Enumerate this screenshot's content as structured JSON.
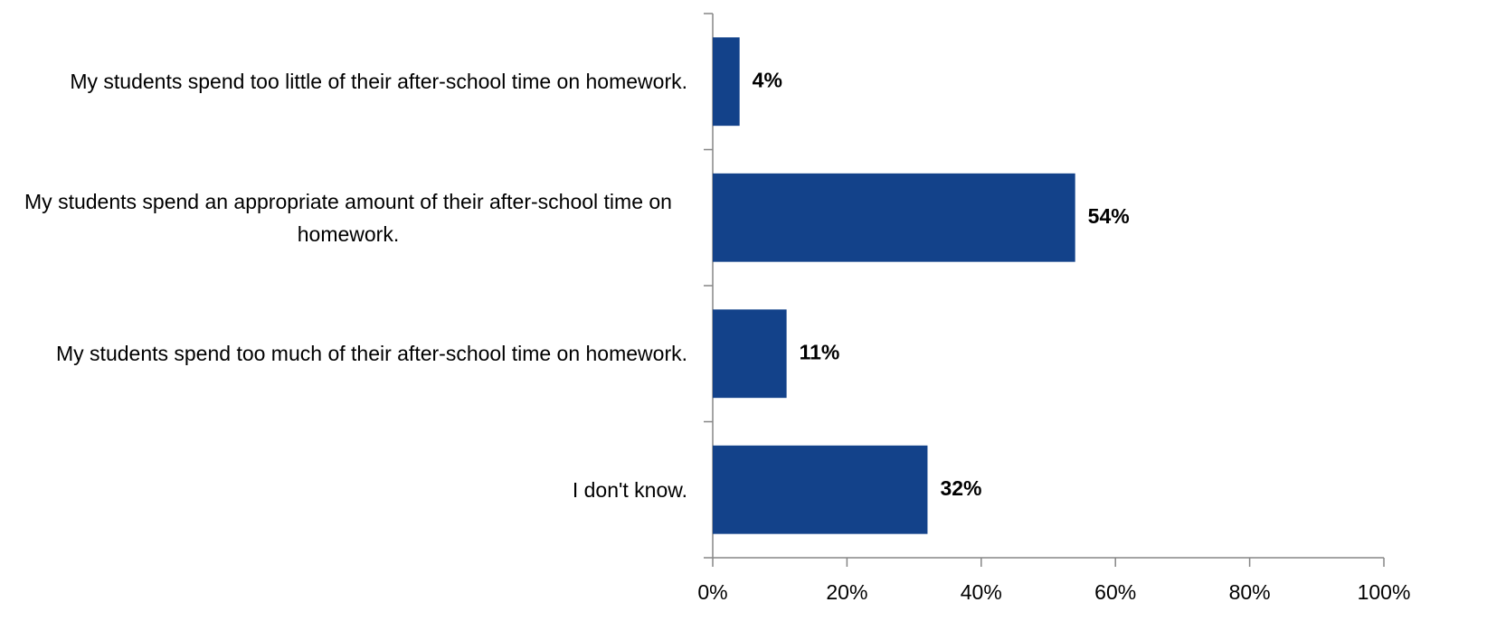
{
  "chart_data": {
    "type": "hbar",
    "categories": [
      "My students spend too little of their after-school time on homework.",
      "My students spend an appropriate amount of their after-school time on homework.",
      "My students spend too much of their after-school time on homework.",
      "I don't know."
    ],
    "values": [
      4,
      54,
      11,
      32
    ],
    "value_labels": [
      "4%",
      "54%",
      "11%",
      "32%"
    ],
    "color": "#13428a",
    "xlim": [
      0,
      100
    ],
    "xticks": [
      {
        "value": 0,
        "label": "0%"
      },
      {
        "value": 20,
        "label": "20%"
      },
      {
        "value": 40,
        "label": "40%"
      },
      {
        "value": 60,
        "label": "60%"
      },
      {
        "value": 80,
        "label": "80%"
      },
      {
        "value": 100,
        "label": "100%"
      }
    ]
  }
}
